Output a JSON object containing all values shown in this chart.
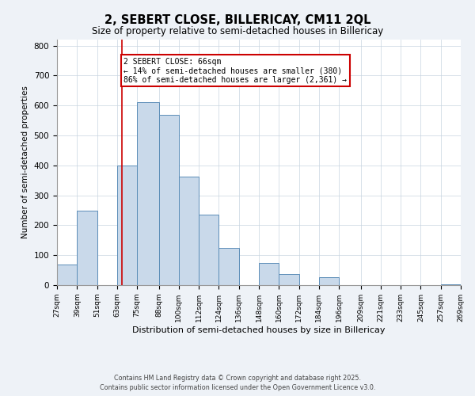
{
  "title": "2, SEBERT CLOSE, BILLERICAY, CM11 2QL",
  "subtitle": "Size of property relative to semi-detached houses in Billericay",
  "xlabel": "Distribution of semi-detached houses by size in Billericay",
  "ylabel": "Number of semi-detached properties",
  "bin_edges": [
    27,
    39,
    51,
    63,
    75,
    88,
    100,
    112,
    124,
    136,
    148,
    160,
    172,
    184,
    196,
    209,
    221,
    233,
    245,
    257,
    269
  ],
  "bar_heights": [
    70,
    248,
    0,
    400,
    610,
    568,
    363,
    235,
    125,
    0,
    75,
    37,
    0,
    27,
    0,
    0,
    0,
    0,
    0,
    3
  ],
  "tick_labels": [
    "27sqm",
    "39sqm",
    "51sqm",
    "63sqm",
    "75sqm",
    "88sqm",
    "100sqm",
    "112sqm",
    "124sqm",
    "136sqm",
    "148sqm",
    "160sqm",
    "172sqm",
    "184sqm",
    "196sqm",
    "209sqm",
    "221sqm",
    "233sqm",
    "245sqm",
    "257sqm",
    "269sqm"
  ],
  "bar_color": "#c9d9ea",
  "bar_edge_color": "#5b8db8",
  "vline_x": 66,
  "vline_color": "#cc0000",
  "annotation_title": "2 SEBERT CLOSE: 66sqm",
  "annotation_line1": "← 14% of semi-detached houses are smaller (380)",
  "annotation_line2": "86% of semi-detached houses are larger (2,361) →",
  "ylim": [
    0,
    820
  ],
  "yticks": [
    0,
    100,
    200,
    300,
    400,
    500,
    600,
    700,
    800
  ],
  "footer1": "Contains HM Land Registry data © Crown copyright and database right 2025.",
  "footer2": "Contains public sector information licensed under the Open Government Licence v3.0.",
  "bg_color": "#eef2f7",
  "plot_bg_color": "#ffffff",
  "grid_color": "#c8d4e0"
}
